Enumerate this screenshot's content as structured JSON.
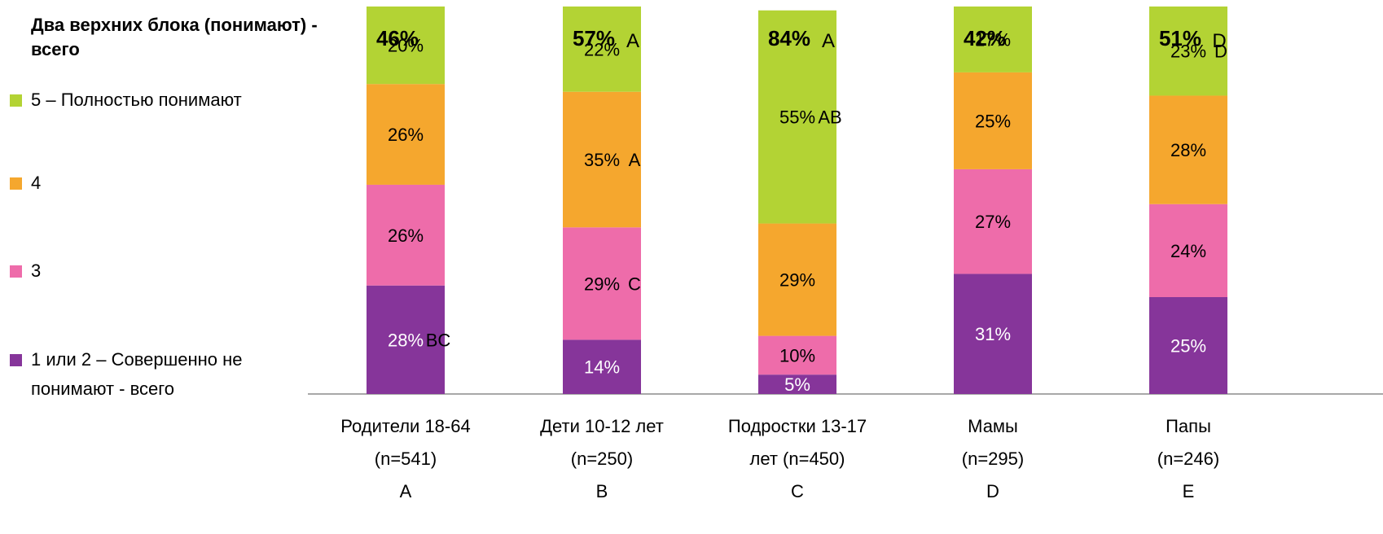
{
  "chart_data": {
    "type": "bar",
    "stacked": true,
    "title": "Два верхних блока (понимают) - всего",
    "categories": [
      {
        "lines": [
          "Родители 18-64",
          "(n=541)",
          "A"
        ]
      },
      {
        "lines": [
          "Дети 10-12 лет",
          "(n=250)",
          "B"
        ]
      },
      {
        "lines": [
          "Подростки 13-17",
          "лет (n=450)",
          "C"
        ]
      },
      {
        "lines": [
          "Мамы",
          "(n=295)",
          "D"
        ]
      },
      {
        "lines": [
          "Папы",
          "(n=246)",
          "E"
        ]
      }
    ],
    "top_two_box": [
      {
        "value": 46,
        "label": "46%",
        "sig": ""
      },
      {
        "value": 57,
        "label": "57%",
        "sig": "A"
      },
      {
        "value": 84,
        "label": "84%",
        "sig": "A"
      },
      {
        "value": 42,
        "label": "42%",
        "sig": ""
      },
      {
        "value": 51,
        "label": "51%",
        "sig": "D"
      }
    ],
    "series": [
      {
        "name_lines": [
          "1 или 2 – Совершенно не",
          "понимают - всего"
        ],
        "color": "#86359A",
        "label_color": "#ffffff",
        "values": [
          28,
          14,
          5,
          31,
          25
        ],
        "labels": [
          "28%",
          "14%",
          "5%",
          "31%",
          "25%"
        ],
        "sig": [
          "BC",
          "",
          "",
          "",
          ""
        ]
      },
      {
        "name_lines": [
          "3"
        ],
        "color": "#EE6CAA",
        "label_color": "#000000",
        "values": [
          26,
          29,
          10,
          27,
          24
        ],
        "labels": [
          "26%",
          "29%",
          "10%",
          "27%",
          "24%"
        ],
        "sig": [
          "",
          "C",
          "",
          "",
          ""
        ]
      },
      {
        "name_lines": [
          "4"
        ],
        "color": "#F5A72E",
        "label_color": "#000000",
        "values": [
          26,
          35,
          29,
          25,
          28
        ],
        "labels": [
          "26%",
          "35%",
          "29%",
          "25%",
          "28%"
        ],
        "sig": [
          "",
          "A",
          "",
          "",
          ""
        ]
      },
      {
        "name_lines": [
          "5 – Полностью понимают"
        ],
        "color": "#B3D334",
        "label_color": "#000000",
        "values": [
          20,
          22,
          55,
          17,
          23
        ],
        "labels": [
          "20%",
          "22%",
          "55%",
          "17%",
          "23%"
        ],
        "sig": [
          "",
          "",
          "AB",
          "",
          "D"
        ]
      }
    ],
    "legend_position": "left",
    "grid": false
  }
}
